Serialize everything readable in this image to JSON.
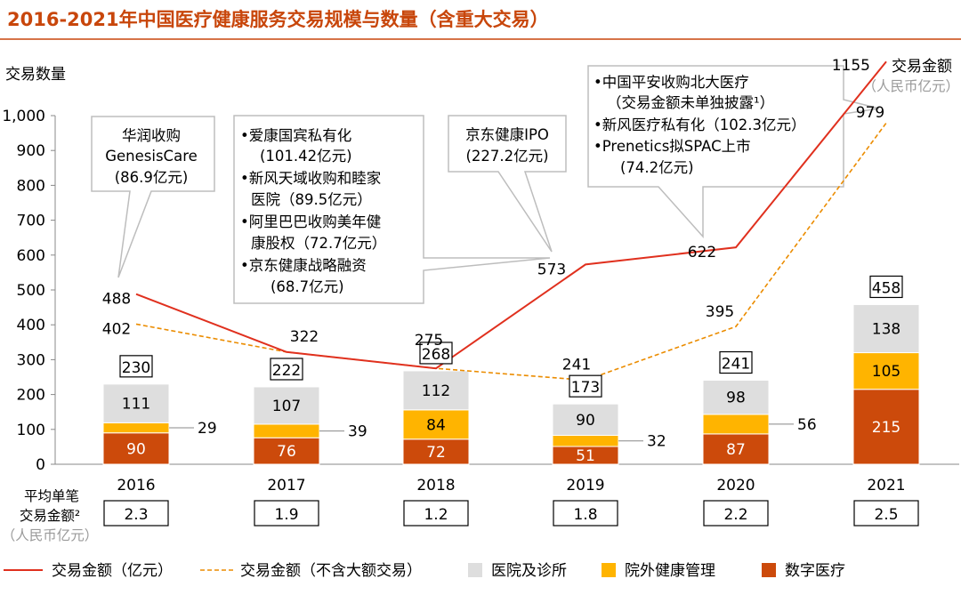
{
  "chart_data": {
    "type": "bar",
    "title": "2016-2021年中国医疗健康服务交易规模与数量（含重大交易）",
    "ylabel": "交易数量",
    "right_label": "交易金额",
    "right_unit": "（人民币亿元）",
    "ylim": [
      0,
      1000
    ],
    "yticks": [
      "0",
      "100",
      "200",
      "300",
      "400",
      "500",
      "600",
      "700",
      "800",
      "900",
      "1,000"
    ],
    "categories": [
      "2016",
      "2017",
      "2018",
      "2019",
      "2020",
      "2021"
    ],
    "series": [
      {
        "name": "数字医疗",
        "kind": "stack",
        "color": "#cc4a0b",
        "values": [
          90,
          76,
          72,
          51,
          87,
          215
        ]
      },
      {
        "name": "院外健康管理",
        "kind": "stack",
        "color": "#ffb400",
        "values": [
          29,
          39,
          84,
          32,
          56,
          105
        ]
      },
      {
        "name": "医院及诊所",
        "kind": "stack",
        "color": "#dedede",
        "values": [
          111,
          107,
          112,
          90,
          98,
          138
        ]
      },
      {
        "name": "交易金额（亿元）",
        "kind": "line",
        "color": "#e0301e",
        "values": [
          488,
          322,
          275,
          573,
          622,
          1155
        ]
      },
      {
        "name": "交易金额（不含大额交易）",
        "kind": "dashed",
        "color": "#eb8c00",
        "values": [
          402,
          322,
          275,
          241,
          395,
          979
        ]
      }
    ],
    "totals": [
      230,
      222,
      268,
      173,
      241,
      458
    ],
    "legend_position": "bottom",
    "avg_label": [
      "平均单笔",
      "交易金额²",
      "（人民币亿元）"
    ],
    "avg_values": [
      "2.3",
      "1.9",
      "1.2",
      "1.8",
      "2.2",
      "2.5"
    ],
    "annotations": [
      {
        "id": "a2016",
        "lines": [
          "华润收购",
          "GenesisCare",
          "(86.9亿元)"
        ]
      },
      {
        "id": "a2019a",
        "lines": [
          "•爱康国宾私有化",
          "(101.42亿元)",
          "•新风天域收购和睦家",
          "医院（89.5亿元）",
          "•阿里巴巴收购美年健",
          "康股权（72.7亿元）",
          "•京东健康战略融资",
          "(68.7亿元)"
        ]
      },
      {
        "id": "a2019b",
        "lines": [
          "京东健康IPO",
          "(227.2亿元)"
        ]
      },
      {
        "id": "a2021",
        "lines": [
          "•中国平安收购北大医疗",
          "（交易金额未单独披露¹）",
          "•新风医疗私有化（102.3亿元）",
          "•Prenetics拟SPAC上市",
          "(74.2亿元)"
        ]
      }
    ]
  }
}
